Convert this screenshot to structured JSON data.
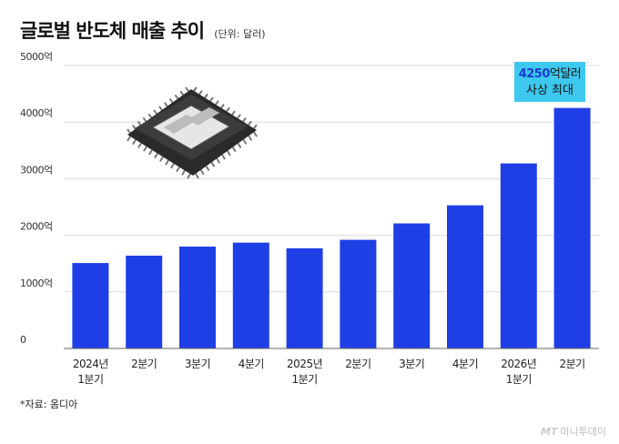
{
  "header": {
    "title": "글로벌 반도체 매출 추이",
    "unit": "(단위: 달러)"
  },
  "callout": {
    "value": "4250",
    "value_suffix": "억달러",
    "line2": "사상 최대",
    "bg_color": "#3ec8ef",
    "value_color": "#1a3bd0"
  },
  "footer": {
    "source": "*자료: 옴디아",
    "watermark_mark": "MT",
    "watermark_text": "머니투데이"
  },
  "chart_data": {
    "type": "bar",
    "categories": [
      [
        "2024년",
        "1분기"
      ],
      [
        "2분기"
      ],
      [
        "3분기"
      ],
      [
        "4분기"
      ],
      [
        "2025년",
        "1분기"
      ],
      [
        "2분기"
      ],
      [
        "3분기"
      ],
      [
        "4분기"
      ],
      [
        "2026년",
        "1분기"
      ],
      [
        "2분기"
      ]
    ],
    "values": [
      1510,
      1640,
      1800,
      1870,
      1770,
      1920,
      2210,
      2530,
      3270,
      4250
    ],
    "ylim": [
      0,
      5000
    ],
    "yticks": [
      0,
      1000,
      2000,
      3000,
      4000,
      5000
    ],
    "ytick_labels": [
      "0",
      "1000억",
      "2000억",
      "3000억",
      "4000억",
      "5000억"
    ],
    "grid": true,
    "bar_color": "#1f3fe6"
  }
}
